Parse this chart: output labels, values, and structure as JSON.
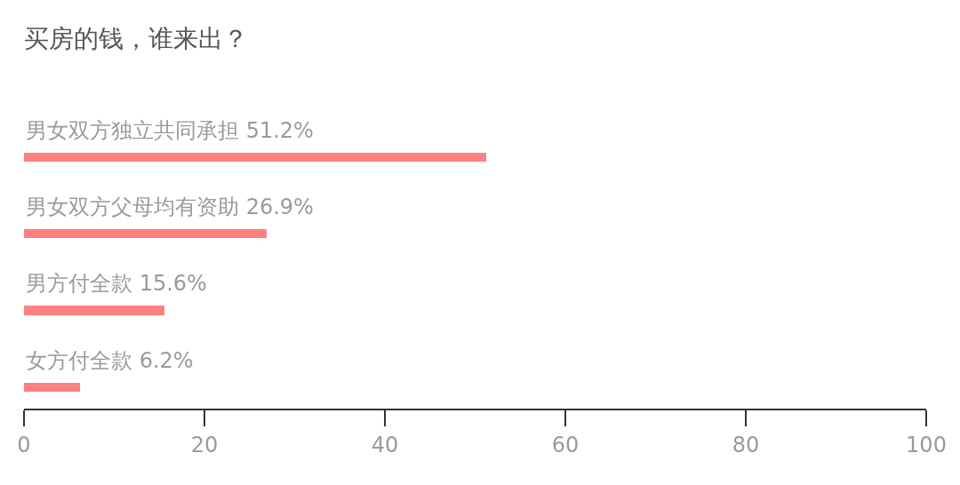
{
  "chart_data": {
    "type": "bar",
    "orientation": "horizontal",
    "title": "买房的钱，谁来出？",
    "categories": [
      "男女双方独立共同承担",
      "男女双方父母均有资助",
      "男方付全款",
      "女方付全款"
    ],
    "values": [
      51.2,
      26.9,
      15.6,
      6.2
    ],
    "value_labels": [
      "51.2%",
      "26.9%",
      "15.6%",
      "6.2%"
    ],
    "color": "#ff8080",
    "xlim": [
      0,
      100
    ],
    "xticks": [
      0,
      20,
      40,
      60,
      80,
      100
    ],
    "tick_labels": "x"
  }
}
